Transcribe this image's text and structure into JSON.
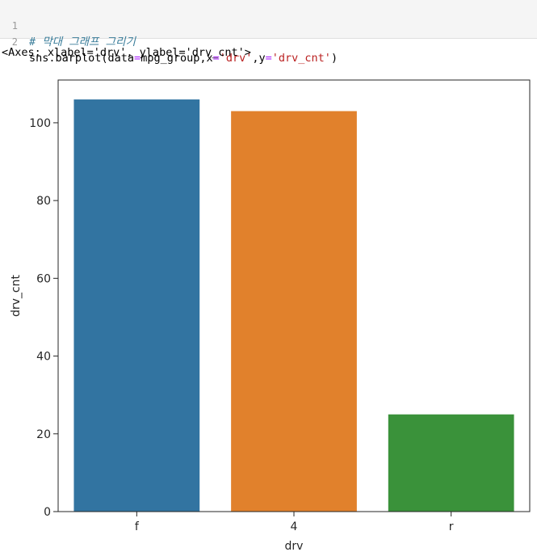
{
  "notebook": {
    "input_cell": {
      "line_numbers": [
        "1",
        "2"
      ],
      "comment": "# 막대 그래프 그리기",
      "code_prefix": "sns.barplot(data",
      "code_eq1": "=",
      "code_part2": "mpg_group,x",
      "code_eq2": "=",
      "code_str1": "'drv'",
      "code_part3": ",y",
      "code_eq3": "=",
      "code_str2": "'drv_cnt'",
      "code_close": ")"
    },
    "output_text": "<Axes: xlabel='drv', ylabel='drv_cnt'>"
  },
  "chart_data": {
    "type": "bar",
    "categories": [
      "f",
      "4",
      "r"
    ],
    "values": [
      106,
      103,
      25
    ],
    "colors": [
      "#3274a1",
      "#e1812c",
      "#3a923a"
    ],
    "xlabel": "drv",
    "ylabel": "drv_cnt",
    "ylim": [
      0,
      111
    ],
    "yticks": [
      0,
      20,
      40,
      60,
      80,
      100
    ],
    "grid": false,
    "legend": false
  }
}
